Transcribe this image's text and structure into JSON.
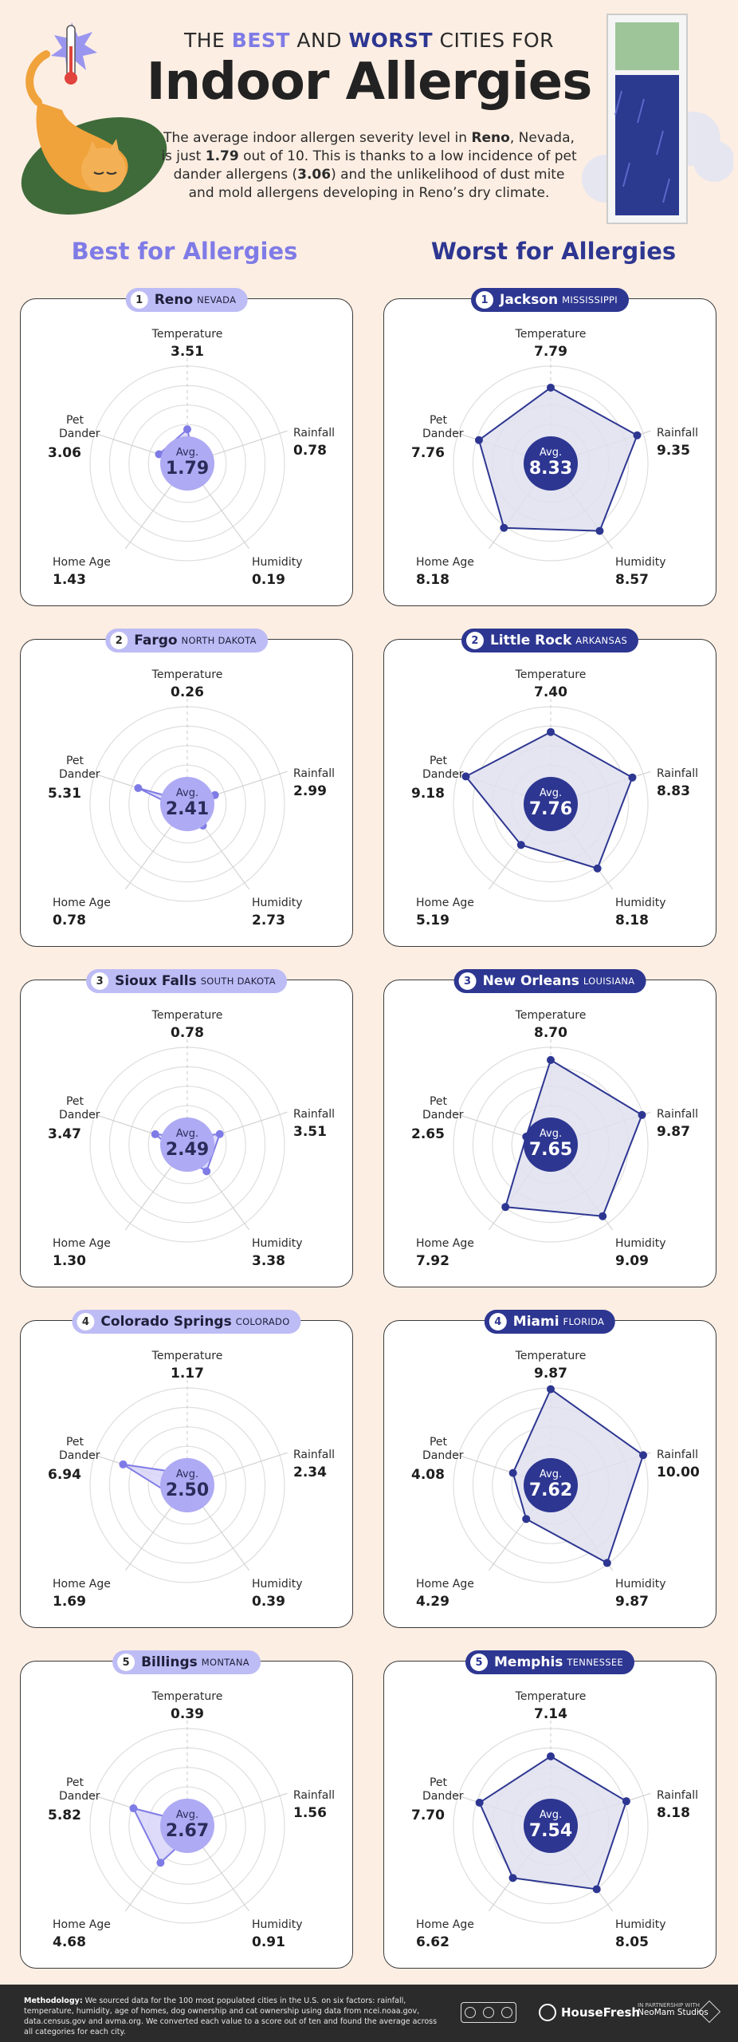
{
  "header": {
    "pretitle_prefix": "THE",
    "pretitle_best": "BEST",
    "pretitle_mid": "AND",
    "pretitle_worst": "WORST",
    "pretitle_suffix": "CITIES FOR",
    "title": "Indoor Allergies",
    "intro": {
      "p1": "The average indoor allergen severity level in ",
      "city": "Reno",
      "p2": ", Nevada, is just ",
      "score": "1.79",
      "p3": " out of 10. This is thanks to a low incidence of pet dander allergens (",
      "dander": "3.06",
      "p4": ") and the unlikelihood of dust mite and mold allergens developing in Reno’s dry climate."
    }
  },
  "columns": {
    "best_title": "Best for Allergies",
    "worst_title": "Worst for Allergies"
  },
  "axis_labels": {
    "temperature": "Temperature",
    "rainfall": "Rainfall",
    "humidity": "Humidity",
    "home_age": "Home Age",
    "pet_dander": "Pet Dander"
  },
  "avg_label": "Avg.",
  "colors": {
    "best_accent": "#7f7be6",
    "best_fill": "#d7d5f8",
    "best_avg": "#aeaaf3",
    "worst_accent": "#2d3691",
    "worst_fill": "#dfe0ef",
    "background": "#fdeee3"
  },
  "chart_data": [
    {
      "type": "radar",
      "group": "best",
      "rank": "1",
      "city": "Reno",
      "state": "NEVADA",
      "axes": [
        "Temperature",
        "Rainfall",
        "Humidity",
        "Home Age",
        "Pet Dander"
      ],
      "values": [
        3.51,
        0.78,
        0.19,
        1.43,
        3.06
      ],
      "display": [
        "3.51",
        "0.78",
        "0.19",
        "1.43",
        "3.06"
      ],
      "avg": "1.79",
      "rmax": 10
    },
    {
      "type": "radar",
      "group": "best",
      "rank": "2",
      "city": "Fargo",
      "state": "NORTH DAKOTA",
      "axes": [
        "Temperature",
        "Rainfall",
        "Humidity",
        "Home Age",
        "Pet Dander"
      ],
      "values": [
        0.26,
        2.99,
        2.73,
        0.78,
        5.31
      ],
      "display": [
        "0.26",
        "2.99",
        "2.73",
        "0.78",
        "5.31"
      ],
      "avg": "2.41",
      "rmax": 10
    },
    {
      "type": "radar",
      "group": "best",
      "rank": "3",
      "city": "Sioux Falls",
      "state": "SOUTH DAKOTA",
      "axes": [
        "Temperature",
        "Rainfall",
        "Humidity",
        "Home Age",
        "Pet Dander"
      ],
      "values": [
        0.78,
        3.51,
        3.38,
        1.3,
        3.47
      ],
      "display": [
        "0.78",
        "3.51",
        "3.38",
        "1.30",
        "3.47"
      ],
      "avg": "2.49",
      "rmax": 10
    },
    {
      "type": "radar",
      "group": "best",
      "rank": "4",
      "city": "Colorado Springs",
      "state": "COLORADO",
      "axes": [
        "Temperature",
        "Rainfall",
        "Humidity",
        "Home Age",
        "Pet Dander"
      ],
      "values": [
        1.17,
        2.34,
        0.39,
        1.69,
        6.94
      ],
      "display": [
        "1.17",
        "2.34",
        "0.39",
        "1.69",
        "6.94"
      ],
      "avg": "2.50",
      "rmax": 10
    },
    {
      "type": "radar",
      "group": "best",
      "rank": "5",
      "city": "Billings",
      "state": "MONTANA",
      "axes": [
        "Temperature",
        "Rainfall",
        "Humidity",
        "Home Age",
        "Pet Dander"
      ],
      "values": [
        0.39,
        1.56,
        0.91,
        4.68,
        5.82
      ],
      "display": [
        "0.39",
        "1.56",
        "0.91",
        "4.68",
        "5.82"
      ],
      "avg": "2.67",
      "rmax": 10
    },
    {
      "type": "radar",
      "group": "worst",
      "rank": "1",
      "city": "Jackson",
      "state": "MISSISSIPPI",
      "axes": [
        "Temperature",
        "Rainfall",
        "Humidity",
        "Home Age",
        "Pet Dander"
      ],
      "values": [
        7.79,
        9.35,
        8.57,
        8.18,
        7.76
      ],
      "display": [
        "7.79",
        "9.35",
        "8.57",
        "8.18",
        "7.76"
      ],
      "avg": "8.33",
      "rmax": 10
    },
    {
      "type": "radar",
      "group": "worst",
      "rank": "2",
      "city": "Little Rock",
      "state": "ARKANSAS",
      "axes": [
        "Temperature",
        "Rainfall",
        "Humidity",
        "Home Age",
        "Pet Dander"
      ],
      "values": [
        7.4,
        8.83,
        8.18,
        5.19,
        9.18
      ],
      "display": [
        "7.40",
        "8.83",
        "8.18",
        "5.19",
        "9.18"
      ],
      "avg": "7.76",
      "rmax": 10
    },
    {
      "type": "radar",
      "group": "worst",
      "rank": "3",
      "city": "New Orleans",
      "state": "LOUISIANA",
      "axes": [
        "Temperature",
        "Rainfall",
        "Humidity",
        "Home Age",
        "Pet Dander"
      ],
      "values": [
        8.7,
        9.87,
        9.09,
        7.92,
        2.65
      ],
      "display": [
        "8.70",
        "9.87",
        "9.09",
        "7.92",
        "2.65"
      ],
      "avg": "7.65",
      "rmax": 10
    },
    {
      "type": "radar",
      "group": "worst",
      "rank": "4",
      "city": "Miami",
      "state": "FLORIDA",
      "axes": [
        "Temperature",
        "Rainfall",
        "Humidity",
        "Home Age",
        "Pet Dander"
      ],
      "values": [
        9.87,
        10.0,
        9.87,
        4.29,
        4.08
      ],
      "display": [
        "9.87",
        "10.00",
        "9.87",
        "4.29",
        "4.08"
      ],
      "avg": "7.62",
      "rmax": 10
    },
    {
      "type": "radar",
      "group": "worst",
      "rank": "5",
      "city": "Memphis",
      "state": "TENNESSEE",
      "axes": [
        "Temperature",
        "Rainfall",
        "Humidity",
        "Home Age",
        "Pet Dander"
      ],
      "values": [
        7.14,
        8.18,
        8.05,
        6.62,
        7.7
      ],
      "display": [
        "7.14",
        "8.18",
        "8.05",
        "6.62",
        "7.70"
      ],
      "avg": "7.54",
      "rmax": 10
    }
  ],
  "footer": {
    "method_label": "Methodology:",
    "method_text": " We sourced data for the 100 most populated cities in the U.S. on six factors: rainfall, temperature, humidity, age of homes, dog ownership and cat ownership using data from ncei.noaa.gov, data.census.gov and avma.org. We converted each value to a score out of ten and found the average across all categories for each city.",
    "brand": "HouseFresh",
    "partner_line": "IN PARTNERSHIP WITH",
    "partner_name": "NeoMam Studios"
  }
}
